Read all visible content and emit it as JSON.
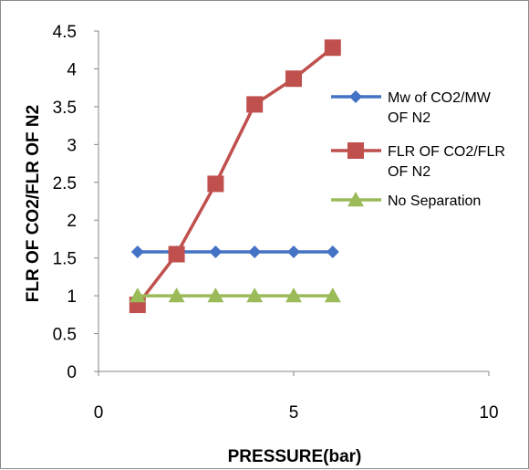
{
  "chart_data": {
    "type": "scatter",
    "title": "",
    "xlabel": "PRESSURE(bar)",
    "ylabel": "FLR OF CO2/FLR OF N2",
    "xlim": [
      0,
      10
    ],
    "ylim": [
      0,
      4.5
    ],
    "x_ticks": [
      "0",
      "5",
      "10"
    ],
    "y_ticks": [
      "0",
      "0.5",
      "1",
      "1.5",
      "2",
      "2.5",
      "3",
      "3.5",
      "4",
      "4.5"
    ],
    "grid": false,
    "legend_position": "right",
    "series": [
      {
        "name": "Mw of CO2/MW OF N2",
        "legend_lines": [
          "Mw of CO2/MW",
          "OF N2"
        ],
        "color": "#4472C4",
        "marker": "diamond",
        "x": [
          1,
          2,
          3,
          4,
          5,
          6
        ],
        "y": [
          1.58,
          1.58,
          1.58,
          1.58,
          1.58,
          1.58
        ]
      },
      {
        "name": "FLR OF CO2/FLR OF N2",
        "legend_lines": [
          "FLR OF CO2/FLR",
          "OF N2"
        ],
        "color": "#C0504D",
        "marker": "square",
        "x": [
          1,
          2,
          3,
          4,
          5,
          6
        ],
        "y": [
          0.88,
          1.55,
          2.48,
          3.53,
          3.87,
          4.28
        ]
      },
      {
        "name": "No Separation",
        "legend_lines": [
          "No Separation"
        ],
        "color": "#9BBB59",
        "marker": "triangle",
        "x": [
          1,
          2,
          3,
          4,
          5,
          6
        ],
        "y": [
          1,
          1,
          1,
          1,
          1,
          1
        ]
      }
    ]
  }
}
